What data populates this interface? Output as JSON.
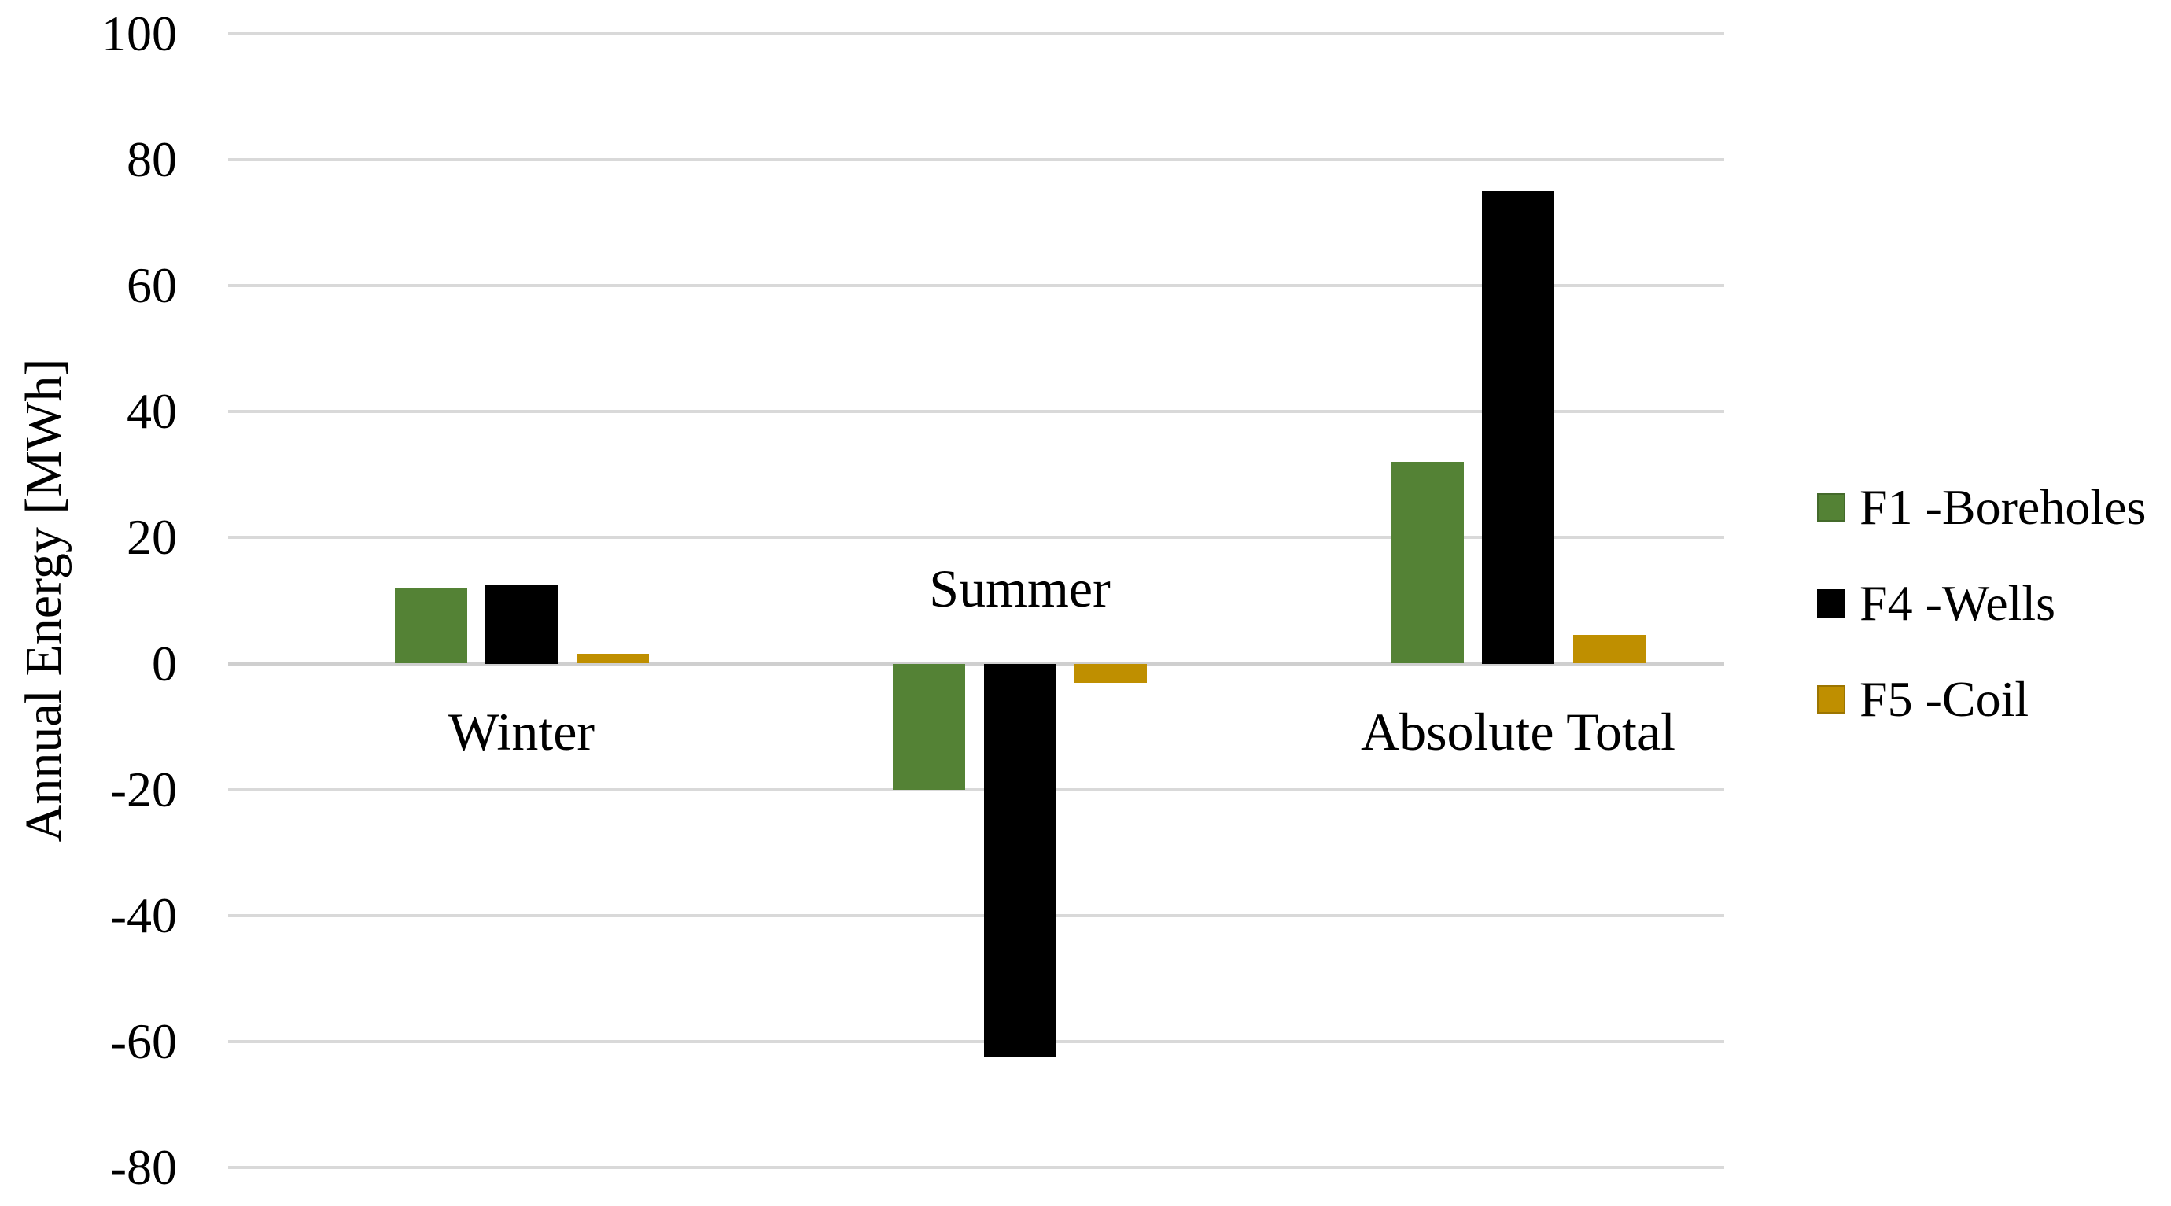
{
  "chart_data": {
    "type": "bar",
    "title": "",
    "ylabel": "Annual Energy [MWh]",
    "categories": [
      "Winter",
      "Summer",
      "Absolute Total"
    ],
    "series": [
      {
        "name": "F1 -Boreholes",
        "color": "#548235",
        "values": [
          12,
          -20,
          32
        ]
      },
      {
        "name": "F4 -Wells",
        "color": "#000000",
        "values": [
          12.5,
          -62.5,
          75
        ]
      },
      {
        "name": "F5 -Coil",
        "color": "#BF8F00",
        "values": [
          1.5,
          -3,
          4.5
        ]
      }
    ],
    "y_axis": {
      "min": -80,
      "max": 100,
      "step": 20,
      "tick_labels": [
        "100",
        "80",
        "60",
        "40",
        "20",
        "0",
        "-20",
        "-40",
        "-60",
        "-80"
      ]
    },
    "grid": true,
    "legend_position": "right",
    "gridline_color": "#d9d9d9",
    "text_color": "#000000",
    "background": "#ffffff"
  }
}
